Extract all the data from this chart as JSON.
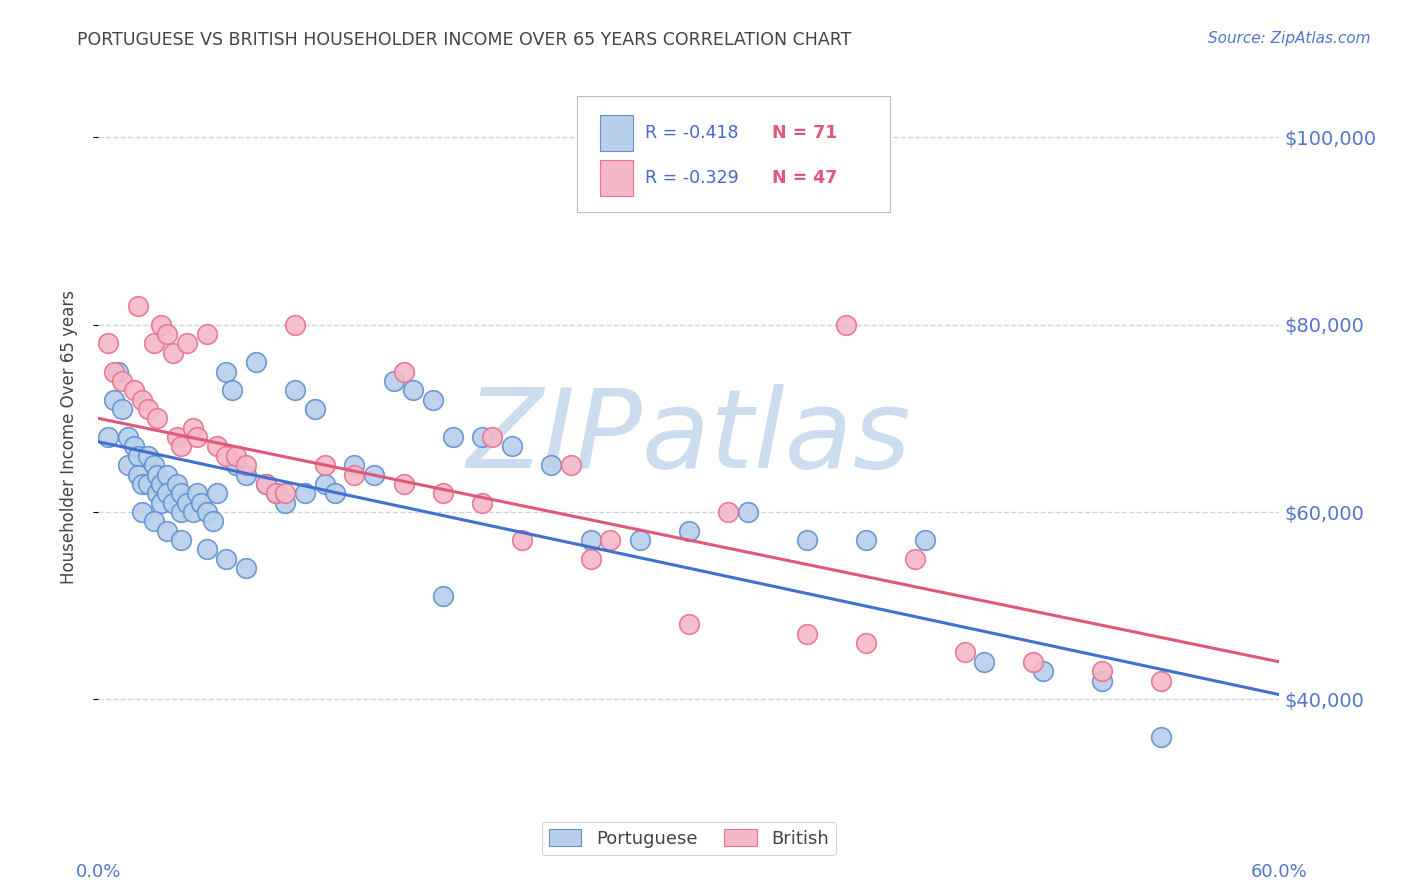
{
  "title": "PORTUGUESE VS BRITISH HOUSEHOLDER INCOME OVER 65 YEARS CORRELATION CHART",
  "source": "Source: ZipAtlas.com",
  "ylabel": "Householder Income Over 65 years",
  "xlim": [
    0.0,
    0.6
  ],
  "ylim": [
    28000,
    108000
  ],
  "yticks": [
    40000,
    60000,
    80000,
    100000
  ],
  "ytick_labels": [
    "$40,000",
    "$60,000",
    "$80,000",
    "$100,000"
  ],
  "xticks": [
    0.0,
    0.1,
    0.2,
    0.3,
    0.4,
    0.5,
    0.6
  ],
  "blue_R": -0.418,
  "blue_N": 71,
  "pink_R": -0.329,
  "pink_N": 47,
  "blue_color": "#b8d0ea",
  "pink_color": "#f5b8c8",
  "blue_edge_color": "#6090d0",
  "pink_edge_color": "#e87090",
  "blue_line_color": "#4070d0",
  "pink_line_color": "#e05878",
  "watermark": "ZIPatlas",
  "watermark_color": "#ccddf0",
  "background_color": "#ffffff",
  "grid_color": "#c8d4e4",
  "title_color": "#444444",
  "axis_color": "#5575cc",
  "legend_r_color": "#4466cc",
  "legend_n_color": "#e05878",
  "blue_line_x": [
    0.0,
    0.6
  ],
  "blue_line_y": [
    67500,
    40500
  ],
  "pink_line_x": [
    0.0,
    0.6
  ],
  "pink_line_y": [
    70000,
    44000
  ],
  "portuguese_x": [
    0.005,
    0.008,
    0.01,
    0.012,
    0.015,
    0.015,
    0.018,
    0.02,
    0.02,
    0.022,
    0.025,
    0.025,
    0.028,
    0.03,
    0.03,
    0.032,
    0.032,
    0.035,
    0.035,
    0.038,
    0.04,
    0.042,
    0.042,
    0.045,
    0.048,
    0.05,
    0.052,
    0.055,
    0.058,
    0.06,
    0.065,
    0.068,
    0.07,
    0.075,
    0.08,
    0.085,
    0.09,
    0.095,
    0.1,
    0.105,
    0.11,
    0.115,
    0.12,
    0.13,
    0.14,
    0.15,
    0.16,
    0.17,
    0.18,
    0.195,
    0.21,
    0.23,
    0.25,
    0.275,
    0.3,
    0.33,
    0.36,
    0.39,
    0.42,
    0.45,
    0.48,
    0.51,
    0.54,
    0.175,
    0.022,
    0.028,
    0.035,
    0.042,
    0.055,
    0.065,
    0.075
  ],
  "portuguese_y": [
    68000,
    72000,
    75000,
    71000,
    68000,
    65000,
    67000,
    66000,
    64000,
    63000,
    66000,
    63000,
    65000,
    64000,
    62000,
    63000,
    61000,
    64000,
    62000,
    61000,
    63000,
    62000,
    60000,
    61000,
    60000,
    62000,
    61000,
    60000,
    59000,
    62000,
    75000,
    73000,
    65000,
    64000,
    76000,
    63000,
    62000,
    61000,
    73000,
    62000,
    71000,
    63000,
    62000,
    65000,
    64000,
    74000,
    73000,
    72000,
    68000,
    68000,
    67000,
    65000,
    57000,
    57000,
    58000,
    60000,
    57000,
    57000,
    57000,
    44000,
    43000,
    42000,
    36000,
    51000,
    60000,
    59000,
    58000,
    57000,
    56000,
    55000,
    54000
  ],
  "british_x": [
    0.005,
    0.008,
    0.012,
    0.018,
    0.02,
    0.022,
    0.025,
    0.028,
    0.03,
    0.032,
    0.035,
    0.038,
    0.04,
    0.042,
    0.045,
    0.048,
    0.05,
    0.055,
    0.06,
    0.065,
    0.07,
    0.075,
    0.085,
    0.09,
    0.1,
    0.115,
    0.13,
    0.155,
    0.175,
    0.195,
    0.215,
    0.24,
    0.26,
    0.3,
    0.32,
    0.36,
    0.39,
    0.415,
    0.44,
    0.475,
    0.51,
    0.54,
    0.38,
    0.25,
    0.2,
    0.155,
    0.095
  ],
  "british_y": [
    78000,
    75000,
    74000,
    73000,
    82000,
    72000,
    71000,
    78000,
    70000,
    80000,
    79000,
    77000,
    68000,
    67000,
    78000,
    69000,
    68000,
    79000,
    67000,
    66000,
    66000,
    65000,
    63000,
    62000,
    80000,
    65000,
    64000,
    63000,
    62000,
    61000,
    57000,
    65000,
    57000,
    48000,
    60000,
    47000,
    46000,
    55000,
    45000,
    44000,
    43000,
    42000,
    80000,
    55000,
    68000,
    75000,
    62000
  ]
}
